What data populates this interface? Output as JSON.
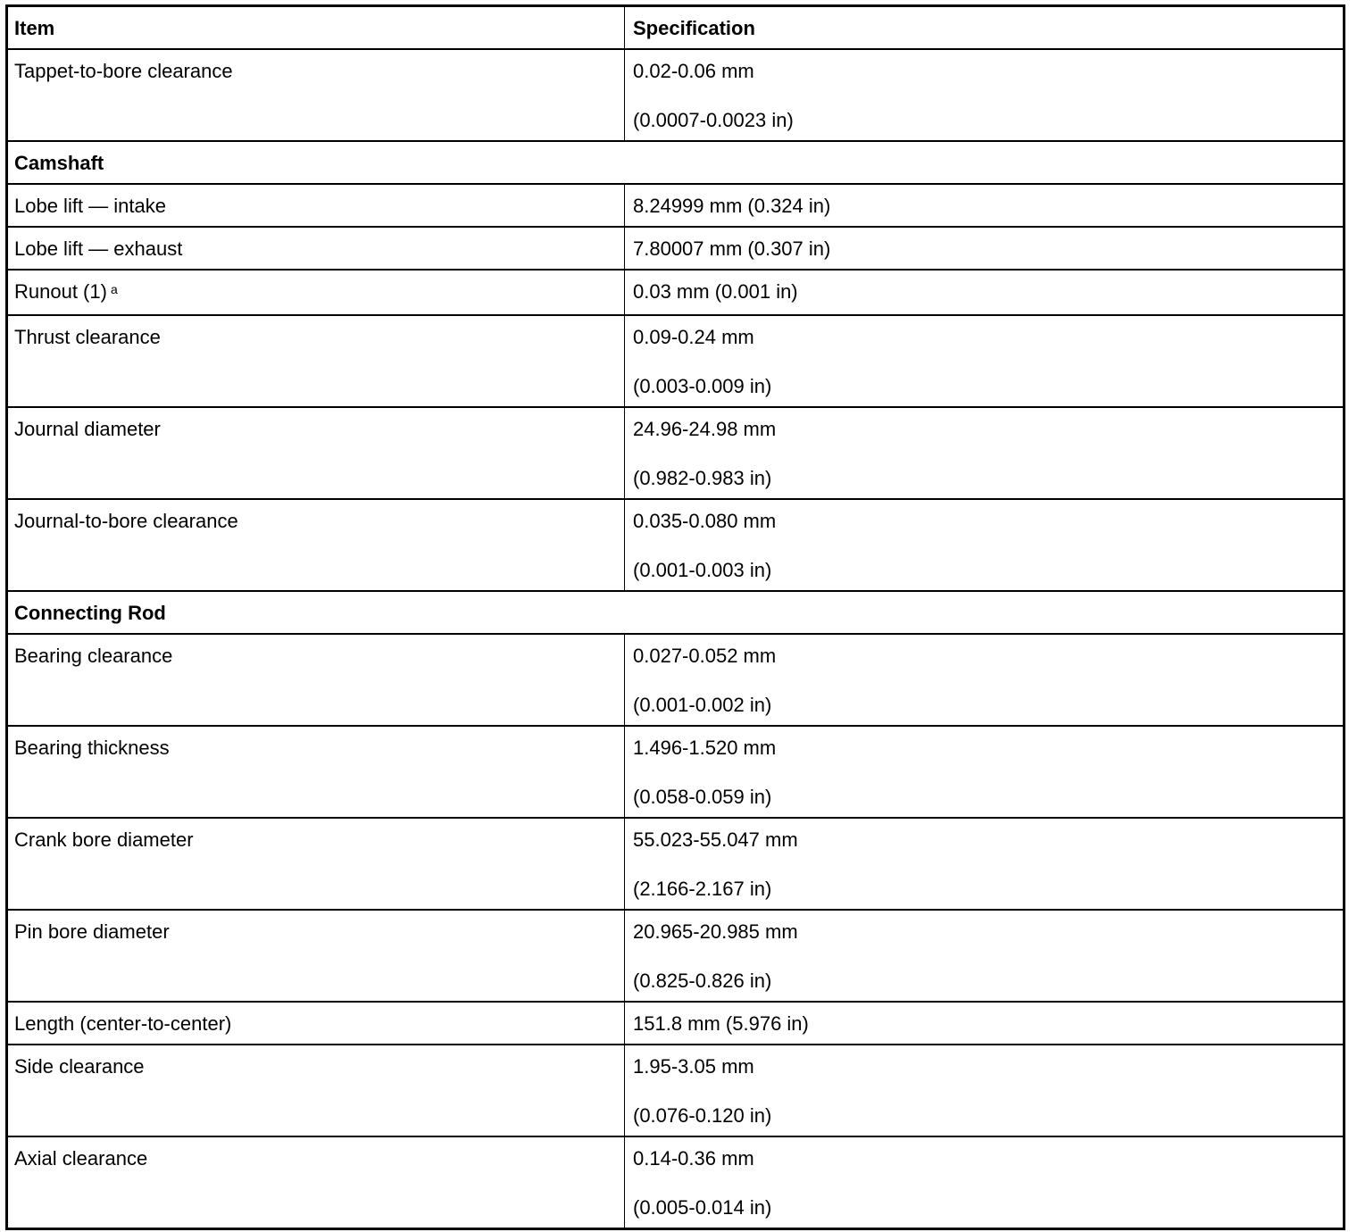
{
  "header": {
    "item": "Item",
    "specification": "Specification"
  },
  "rows": [
    {
      "type": "spec",
      "item": "Tappet-to-bore clearance",
      "spec": [
        "0.02-0.06 mm",
        "(0.0007-0.0023 in)"
      ]
    },
    {
      "type": "section",
      "label": "Camshaft"
    },
    {
      "type": "spec",
      "item": "Lobe lift — intake",
      "spec": [
        "8.24999 mm (0.324 in)"
      ]
    },
    {
      "type": "spec",
      "item": "Lobe lift — exhaust",
      "spec": [
        "7.80007 mm (0.307 in)"
      ]
    },
    {
      "type": "spec",
      "item": "Runout (1)",
      "note": "a",
      "spec": [
        "0.03 mm (0.001 in)"
      ]
    },
    {
      "type": "spec",
      "item": "Thrust clearance",
      "spec": [
        "0.09-0.24 mm",
        "(0.003-0.009 in)"
      ]
    },
    {
      "type": "spec",
      "item": "Journal diameter",
      "spec": [
        "24.96-24.98 mm",
        "(0.982-0.983 in)"
      ]
    },
    {
      "type": "spec",
      "item": "Journal-to-bore clearance",
      "spec": [
        "0.035-0.080 mm",
        "(0.001-0.003 in)"
      ]
    },
    {
      "type": "section",
      "label": "Connecting Rod"
    },
    {
      "type": "spec",
      "item": "Bearing clearance",
      "spec": [
        "0.027-0.052 mm",
        "(0.001-0.002 in)"
      ]
    },
    {
      "type": "spec",
      "item": "Bearing thickness",
      "spec": [
        "1.496-1.520 mm",
        "(0.058-0.059 in)"
      ]
    },
    {
      "type": "spec",
      "item": "Crank bore diameter",
      "spec": [
        "55.023-55.047 mm",
        "(2.166-2.167 in)"
      ]
    },
    {
      "type": "spec",
      "item": "Pin bore diameter",
      "spec": [
        "20.965-20.985 mm",
        "(0.825-0.826 in)"
      ]
    },
    {
      "type": "spec",
      "item": "Length (center-to-center)",
      "spec": [
        "151.8 mm (5.976 in)"
      ]
    },
    {
      "type": "spec",
      "item": "Side clearance",
      "spec": [
        "1.95-3.05 mm",
        "(0.076-0.120 in)"
      ]
    },
    {
      "type": "spec",
      "item": "Axial clearance",
      "spec": [
        "0.14-0.36 mm",
        "(0.005-0.014 in)"
      ]
    }
  ]
}
